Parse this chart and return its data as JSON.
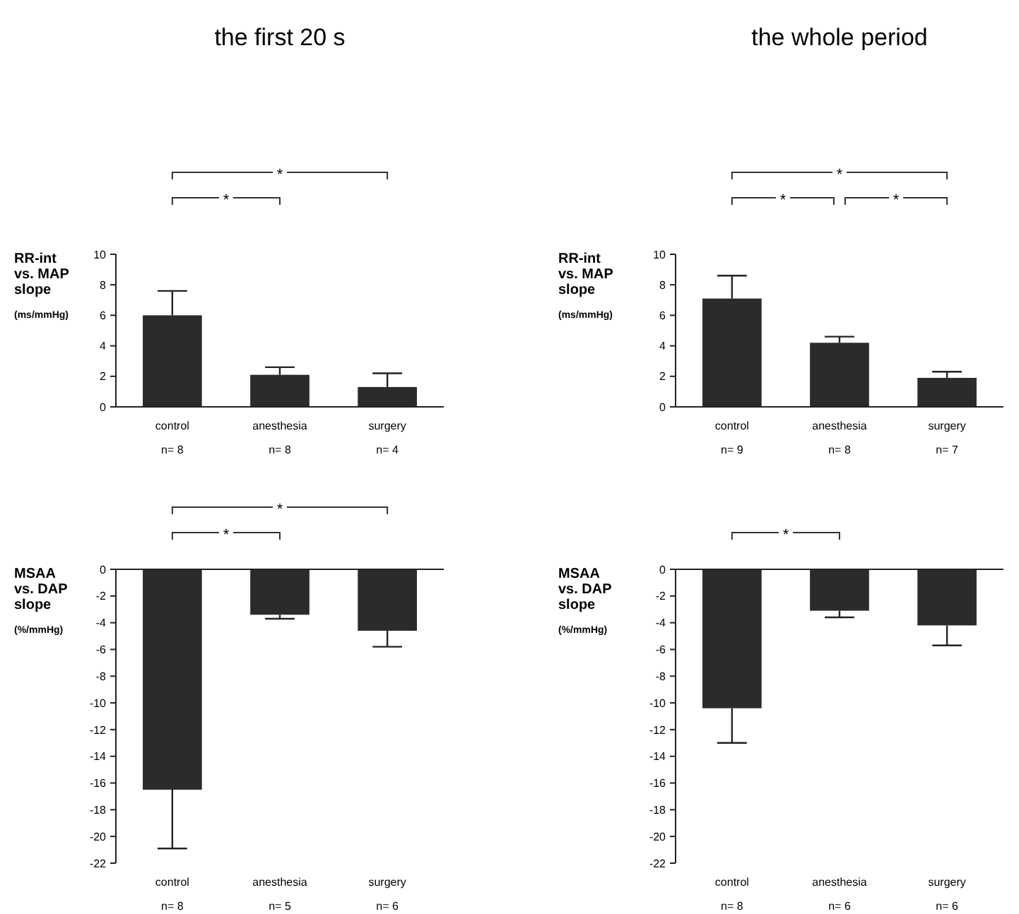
{
  "chart_data": [
    {
      "type": "bar",
      "title": "the first 20 s",
      "ylabel": "RR-int\nvs. MAP\nslope\n(ms/mmHg)",
      "categories": [
        "control",
        "anesthesia",
        "surgery"
      ],
      "values": [
        6.0,
        2.1,
        1.3
      ],
      "errors": [
        [
          6.0,
          7.6
        ],
        [
          2.1,
          2.6
        ],
        [
          1.3,
          2.2
        ]
      ],
      "color": "#2b2b2b",
      "ylim": [
        0,
        10
      ],
      "yticks": [
        0,
        2,
        4,
        6,
        8,
        10
      ],
      "annotations": [
        "*",
        "*",
        "n= 8",
        "n= 8",
        "n= 4"
      ]
    },
    {
      "type": "bar",
      "title": "the whole period",
      "ylabel": "RR-int\nvs. MAP\nslope\n(ms/mmHg)",
      "categories": [
        "control",
        "anesthesia",
        "surgery"
      ],
      "values": [
        7.1,
        4.2,
        1.9
      ],
      "errors": [
        [
          7.1,
          8.6
        ],
        [
          4.2,
          4.6
        ],
        [
          1.9,
          2.3
        ]
      ],
      "color": "#2b2b2b",
      "ylim": [
        0,
        10
      ],
      "yticks": [
        0,
        2,
        4,
        6,
        8,
        10
      ],
      "annotations": [
        "*",
        "*",
        "*",
        "n= 9",
        "n= 8",
        "n= 7"
      ]
    },
    {
      "type": "bar",
      "ylabel": "MSAA\nvs. DAP\nslope\n(%/mmHg)",
      "categories": [
        "control",
        "anesthesia",
        "surgery"
      ],
      "values": [
        -16.5,
        -3.4,
        -4.6
      ],
      "errors": [
        [
          -20.9,
          -16.5
        ],
        [
          -3.7,
          -3.4
        ],
        [
          -5.8,
          -4.6
        ]
      ],
      "color": "#2b2b2b",
      "ylim": [
        -22,
        0
      ],
      "yticks": [
        -22,
        -20,
        -18,
        -16,
        -14,
        -12,
        -10,
        -8,
        -6,
        -4,
        -2,
        0
      ],
      "annotations": [
        "*",
        "*",
        "n= 8",
        "n= 5",
        "n= 6"
      ]
    },
    {
      "type": "bar",
      "ylabel": "MSAA\nvs. DAP\nslope\n(%/mmHg)",
      "categories": [
        "control",
        "anesthesia",
        "surgery"
      ],
      "values": [
        -10.4,
        -3.1,
        -4.2
      ],
      "errors": [
        [
          -13.0,
          -10.4
        ],
        [
          -3.6,
          -3.1
        ],
        [
          -5.7,
          -4.2
        ]
      ],
      "color": "#2b2b2b",
      "ylim": [
        -22,
        0
      ],
      "yticks": [
        -22,
        -20,
        -18,
        -16,
        -14,
        -12,
        -10,
        -8,
        -6,
        -4,
        -2,
        0
      ],
      "annotations": [
        "*",
        "n= 8",
        "n= 6",
        "n= 6"
      ]
    }
  ]
}
